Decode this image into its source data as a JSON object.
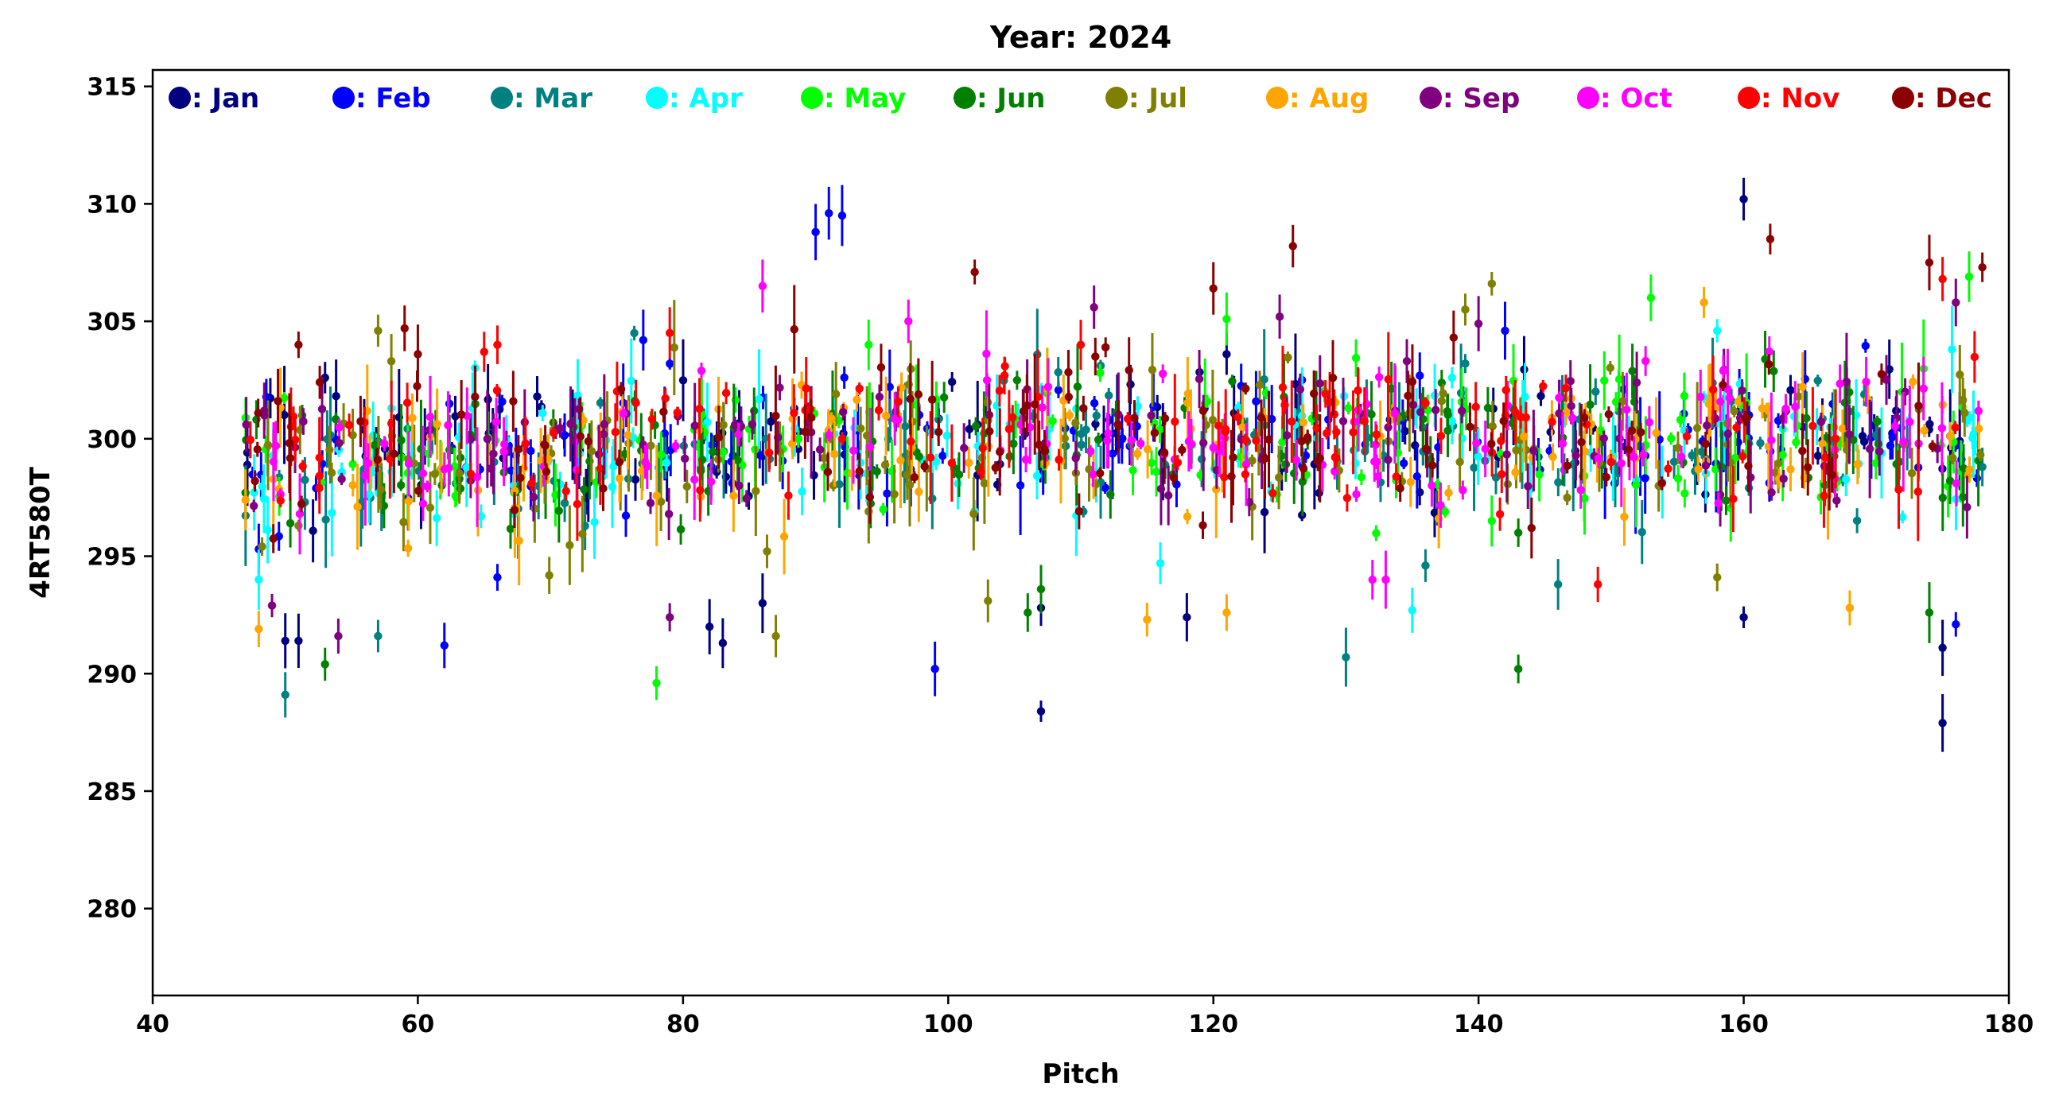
{
  "chart_data": {
    "type": "scatter",
    "title": "Year: 2024",
    "xlabel": "Pitch",
    "ylabel": "4RT580T",
    "xlim": [
      40,
      180
    ],
    "ylim": [
      276.3,
      315.7
    ],
    "xticks": [
      40,
      60,
      80,
      100,
      120,
      140,
      160,
      180
    ],
    "yticks": [
      280,
      285,
      290,
      295,
      300,
      305,
      310,
      315
    ],
    "errorbars": true,
    "legend": "top, single row",
    "series": [
      {
        "name": "Jan",
        "legend_label": ": Jan",
        "color": "#000080",
        "pitch_range": [
          47,
          178
        ],
        "center": 300.0,
        "spread": 2.6,
        "points": [
          [
            50,
            291.4
          ],
          [
            51,
            291.4
          ],
          [
            53,
            302.6
          ],
          [
            69,
            301.8
          ],
          [
            82,
            292.0
          ],
          [
            83,
            291.3
          ],
          [
            86,
            293.0
          ],
          [
            107,
            288.4
          ],
          [
            107,
            292.8
          ],
          [
            160,
            292.4
          ],
          [
            160,
            310.2
          ],
          [
            175,
            291.1
          ],
          [
            175,
            287.9
          ],
          [
            121,
            303.6
          ],
          [
            118,
            292.4
          ]
        ]
      },
      {
        "name": "Feb",
        "legend_label": ": Feb",
        "color": "#0000ff",
        "pitch_range": [
          47,
          178
        ],
        "center": 299.8,
        "spread": 2.5,
        "points": [
          [
            62,
            291.2
          ],
          [
            77,
            304.2
          ],
          [
            90,
            308.8
          ],
          [
            91,
            309.6
          ],
          [
            92,
            309.5
          ],
          [
            99,
            290.2
          ],
          [
            142,
            304.6
          ],
          [
            176,
            292.1
          ],
          [
            48,
            295.3
          ],
          [
            66,
            294.1
          ]
        ]
      },
      {
        "name": "Mar",
        "legend_label": ": Mar",
        "color": "#008080",
        "pitch_range": [
          47,
          178
        ],
        "center": 299.5,
        "spread": 2.6,
        "points": [
          [
            50,
            289.1
          ],
          [
            57,
            291.6
          ],
          [
            130,
            290.7
          ],
          [
            136,
            294.6
          ],
          [
            146,
            293.8
          ],
          [
            139,
            303.2
          ],
          [
            178,
            298.8
          ]
        ]
      },
      {
        "name": "Apr",
        "legend_label": ": Apr",
        "color": "#00ffff",
        "pitch_range": [
          47,
          178
        ],
        "center": 299.6,
        "spread": 2.5,
        "points": [
          [
            48,
            294.0
          ],
          [
            58,
            301.3
          ],
          [
            135,
            292.7
          ],
          [
            138,
            302.6
          ],
          [
            116,
            294.7
          ],
          [
            158,
            304.6
          ]
        ]
      },
      {
        "name": "May",
        "legend_label": ": May",
        "color": "#00ff00",
        "pitch_range": [
          47,
          178
        ],
        "center": 299.7,
        "spread": 2.5,
        "points": [
          [
            78,
            289.6
          ],
          [
            94,
            304.0
          ],
          [
            121,
            305.1
          ],
          [
            141,
            296.5
          ],
          [
            153,
            306.0
          ],
          [
            177,
            306.9
          ]
        ]
      },
      {
        "name": "Jun",
        "legend_label": ": Jun",
        "color": "#008000",
        "pitch_range": [
          47,
          178
        ],
        "center": 299.5,
        "spread": 2.7,
        "points": [
          [
            47,
            297.7
          ],
          [
            53,
            290.4
          ],
          [
            106,
            292.6
          ],
          [
            107,
            293.6
          ],
          [
            143,
            290.2
          ],
          [
            143,
            296.0
          ],
          [
            174,
            292.6
          ]
        ]
      },
      {
        "name": "Jul",
        "legend_label": ": Jul",
        "color": "#808000",
        "pitch_range": [
          47,
          178
        ],
        "center": 299.6,
        "spread": 2.6,
        "points": [
          [
            57,
            304.6
          ],
          [
            58,
            303.3
          ],
          [
            87,
            291.6
          ],
          [
            103,
            293.1
          ],
          [
            141,
            306.6
          ],
          [
            139,
            305.5
          ],
          [
            158,
            294.1
          ]
        ]
      },
      {
        "name": "Aug",
        "legend_label": ": Aug",
        "color": "#ffa500",
        "pitch_range": [
          47,
          178
        ],
        "center": 299.4,
        "spread": 2.7,
        "points": [
          [
            47,
            297.4
          ],
          [
            48,
            291.9
          ],
          [
            115,
            292.3
          ],
          [
            137,
            296.6
          ],
          [
            157,
            305.8
          ],
          [
            168,
            292.8
          ],
          [
            121,
            292.6
          ]
        ]
      },
      {
        "name": "Sep",
        "legend_label": ": Sep",
        "color": "#800080",
        "pitch_range": [
          47,
          178
        ],
        "center": 300.0,
        "spread": 2.6,
        "points": [
          [
            49,
            292.9
          ],
          [
            54,
            291.6
          ],
          [
            79,
            292.4
          ],
          [
            111,
            305.6
          ],
          [
            125,
            305.2
          ],
          [
            140,
            304.9
          ],
          [
            176,
            305.8
          ]
        ]
      },
      {
        "name": "Oct",
        "legend_label": ": Oct",
        "color": "#ff00ff",
        "pitch_range": [
          47,
          178
        ],
        "center": 299.8,
        "spread": 2.6,
        "points": [
          [
            86,
            306.5
          ],
          [
            132,
            294.0
          ],
          [
            133,
            294.0
          ],
          [
            97,
            305.0
          ],
          [
            62,
            298.7
          ]
        ]
      },
      {
        "name": "Nov",
        "legend_label": ": Nov",
        "color": "#ff0000",
        "pitch_range": [
          47,
          178
        ],
        "center": 300.0,
        "spread": 2.6,
        "points": [
          [
            66,
            304.0
          ],
          [
            65,
            303.7
          ],
          [
            79,
            304.5
          ],
          [
            149,
            293.8
          ],
          [
            175,
            306.8
          ],
          [
            110,
            304.0
          ]
        ]
      },
      {
        "name": "Dec",
        "legend_label": ": Dec",
        "color": "#8b0000",
        "pitch_range": [
          47,
          178
        ],
        "center": 300.2,
        "spread": 2.7,
        "points": [
          [
            51,
            304.0
          ],
          [
            59,
            304.7
          ],
          [
            60,
            303.6
          ],
          [
            102,
            307.1
          ],
          [
            120,
            306.4
          ],
          [
            126,
            308.2
          ],
          [
            162,
            308.5
          ],
          [
            174,
            307.5
          ],
          [
            178,
            307.3
          ],
          [
            144,
            296.2
          ]
        ]
      }
    ]
  }
}
